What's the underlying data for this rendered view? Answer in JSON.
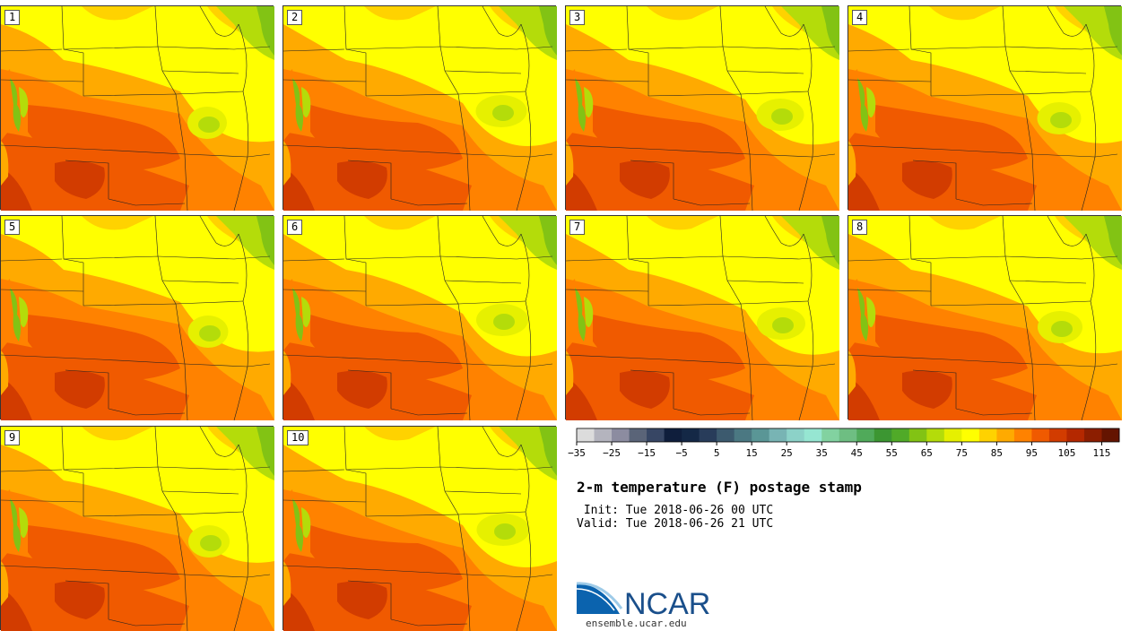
{
  "title": "2-m temperature (F) postage stamp",
  "init": " Init: Tue 2018-06-26 00 UTC",
  "valid": "Valid: Tue 2018-06-26 21 UTC",
  "site": "ensemble.ucar.edu",
  "logo_text": "NCAR",
  "members": [
    "1",
    "2",
    "3",
    "4",
    "5",
    "6",
    "7",
    "8",
    "9",
    "10"
  ],
  "colorbar": {
    "colors": [
      "#dcdcdc",
      "#b4b4be",
      "#8c8ca0",
      "#5a6478",
      "#374664",
      "#0f1e3c",
      "#142846",
      "#283c5a",
      "#3c5a6e",
      "#4b7882",
      "#5a9696",
      "#78b4b4",
      "#8cd2c8",
      "#96e6d2",
      "#82d2a0",
      "#6ebe82",
      "#50aa5a",
      "#3c9632",
      "#50aa28",
      "#82c314",
      "#b4dc0a",
      "#e6f000",
      "#ffff00",
      "#ffd200",
      "#ffaa00",
      "#ff8200",
      "#f05a00",
      "#d23c00",
      "#b42800",
      "#8c1e00",
      "#641400"
    ],
    "ticks": [
      "−35",
      "−25",
      "−15",
      "−5",
      "5",
      "15",
      "25",
      "35",
      "45",
      "55",
      "65",
      "75",
      "85",
      "95",
      "105",
      "115"
    ]
  }
}
